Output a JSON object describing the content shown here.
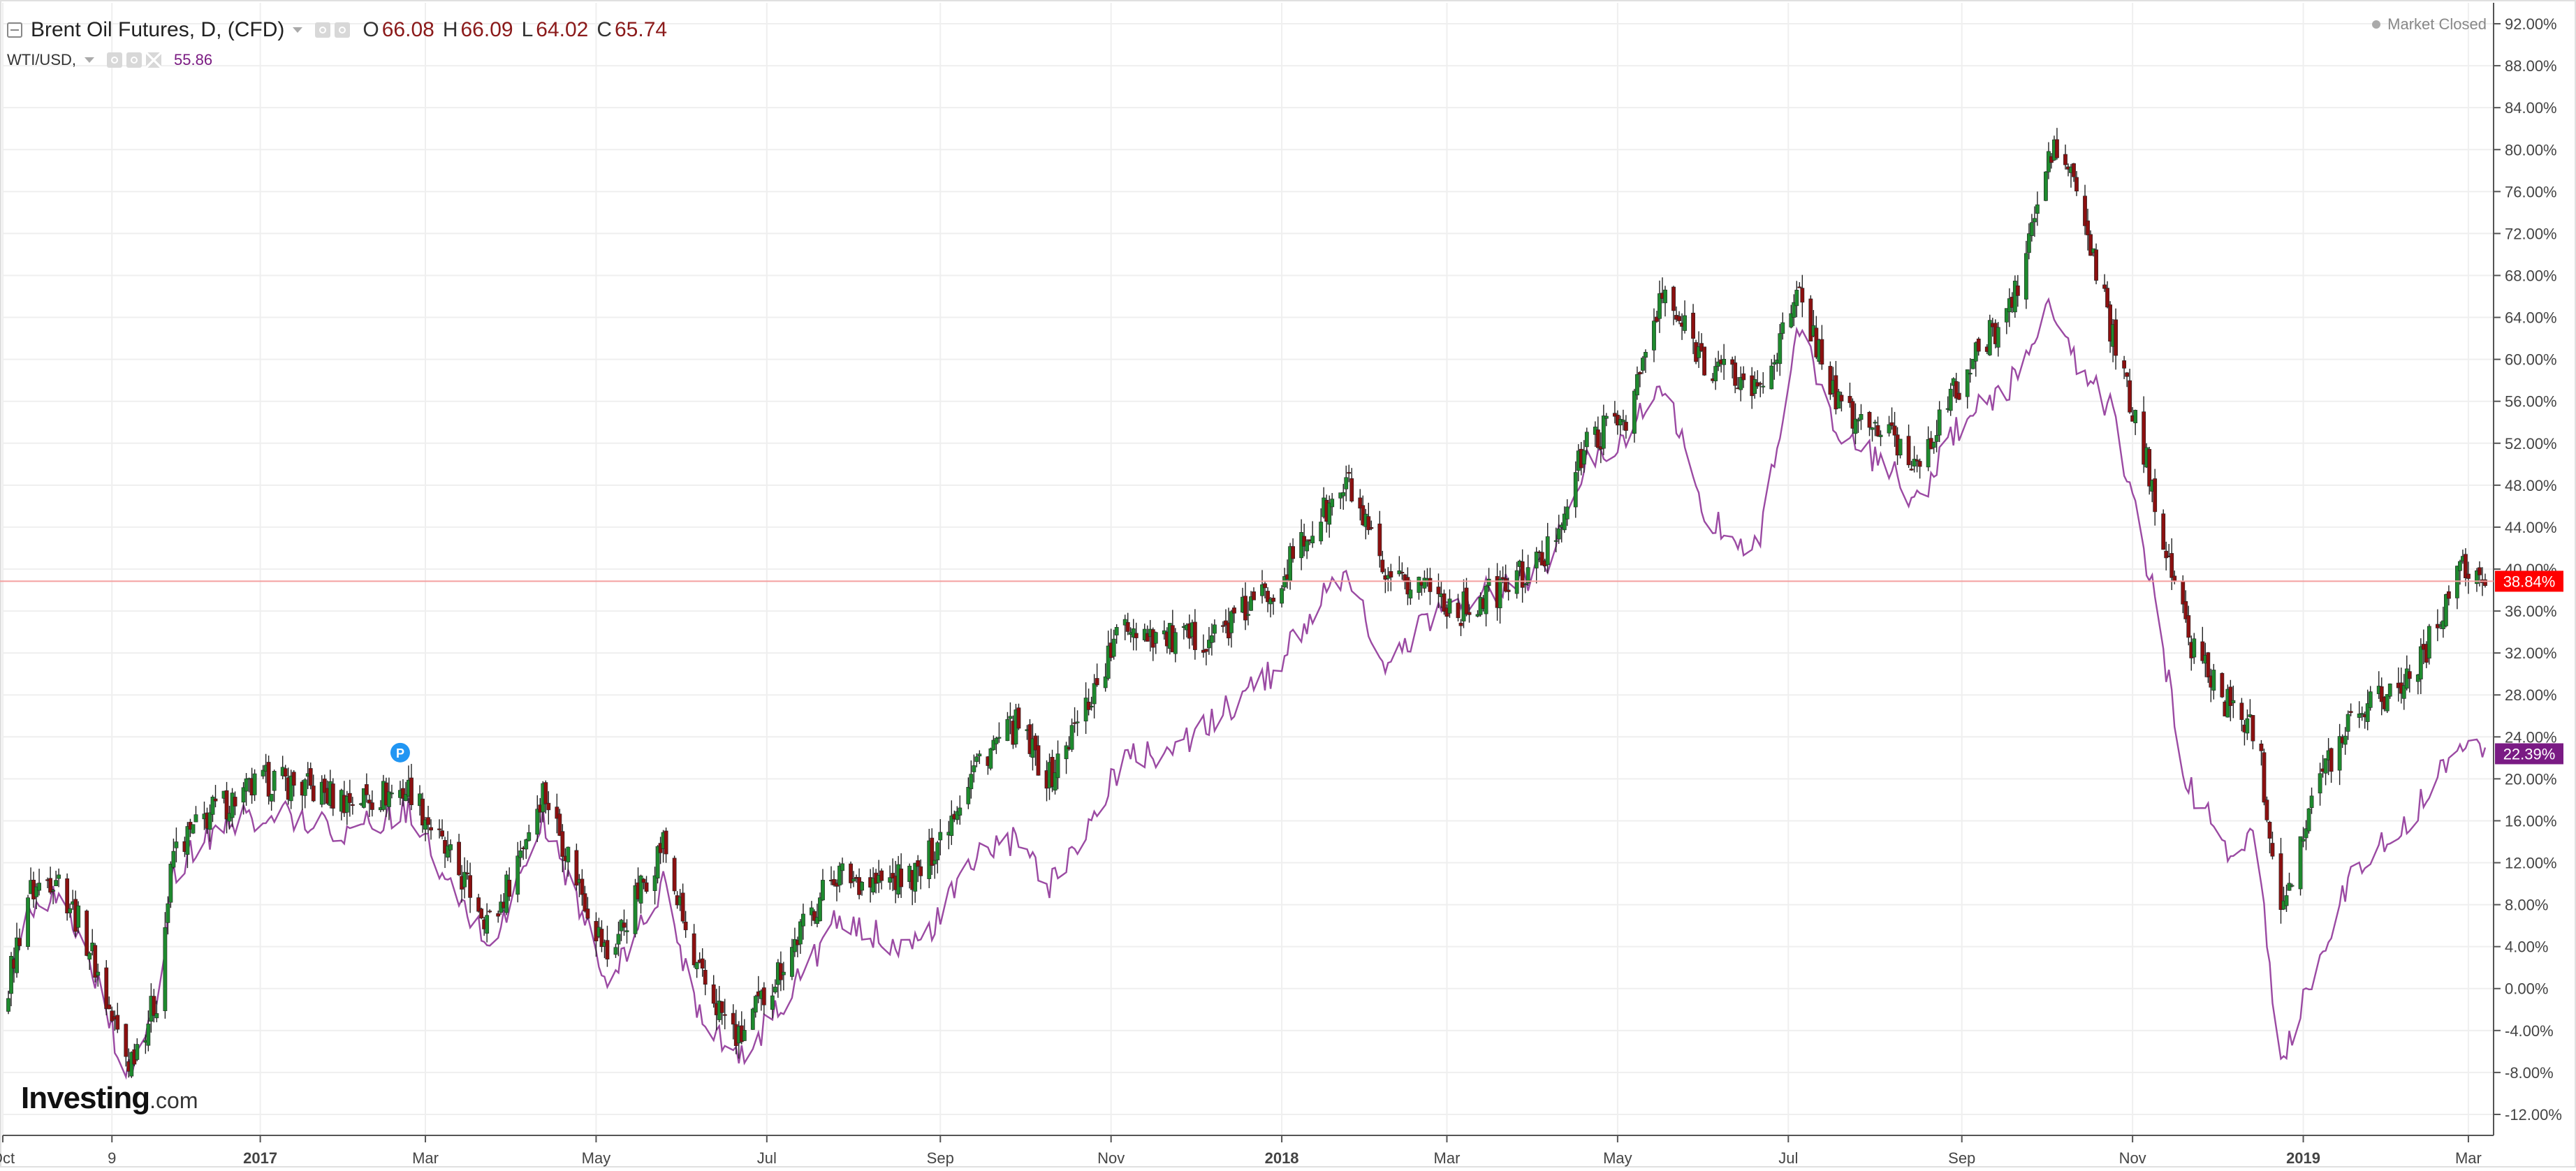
{
  "header": {
    "symbol_title": "Brent Oil Futures, D, (CFD)",
    "ohlc": [
      {
        "key": "O",
        "value": "66.08"
      },
      {
        "key": "H",
        "value": "66.09"
      },
      {
        "key": "L",
        "value": "64.02"
      },
      {
        "key": "C",
        "value": "65.74"
      }
    ],
    "compare_symbol": "WTI/USD,",
    "compare_value": "55.86",
    "market_status": "Market Closed"
  },
  "logo": {
    "brand": "Investing",
    "suffix": ".com"
  },
  "colors": {
    "up": "#1e8a2e",
    "down": "#8b1010",
    "compare": "#9b4aa3",
    "badge_main": "#ff0000",
    "badge_compare": "#7a1b84",
    "price_line": "#f4a0a0",
    "marker": "#2196f3"
  },
  "icons": [
    "collapse-icon",
    "caret-down-icon",
    "visibility-icon",
    "settings-icon",
    "close-icon",
    "marker-p-icon"
  ],
  "chart_data": {
    "type": "candlestick",
    "ylabel": "",
    "ylim": [
      -14,
      94
    ],
    "y_ticks": [
      92,
      88,
      84,
      80,
      76,
      72,
      68,
      64,
      60,
      56,
      52,
      48,
      44,
      40,
      36,
      32,
      28,
      24,
      20,
      16,
      12,
      8,
      4,
      0,
      -4,
      -8,
      -12
    ],
    "y_tick_labels": [
      "92.00%",
      "88.00%",
      "84.00%",
      "80.00%",
      "76.00%",
      "72.00%",
      "68.00%",
      "64.00%",
      "60.00%",
      "56.00%",
      "52.00%",
      "48.00%",
      "44.00%",
      "40.00%",
      "36.00%",
      "32.00%",
      "28.00%",
      "24.00%",
      "20.00%",
      "16.00%",
      "12.00%",
      "8.00%",
      "4.00%",
      "0.00%",
      "-4.00%",
      "-8.00%",
      "-12.00%"
    ],
    "x_range": [
      "2016-10-01",
      "2019-03-10"
    ],
    "x_ticks": [
      {
        "date": "2016-10-01",
        "label": "Oct",
        "bold": false
      },
      {
        "date": "2016-11-09",
        "label": "9",
        "bold": false
      },
      {
        "date": "2017-01-01",
        "label": "2017",
        "bold": true
      },
      {
        "date": "2017-03-01",
        "label": "Mar",
        "bold": false
      },
      {
        "date": "2017-05-01",
        "label": "May",
        "bold": false
      },
      {
        "date": "2017-07-01",
        "label": "Jul",
        "bold": false
      },
      {
        "date": "2017-09-01",
        "label": "Sep",
        "bold": false
      },
      {
        "date": "2017-11-01",
        "label": "Nov",
        "bold": false
      },
      {
        "date": "2018-01-01",
        "label": "2018",
        "bold": true
      },
      {
        "date": "2018-03-01",
        "label": "Mar",
        "bold": false
      },
      {
        "date": "2018-05-01",
        "label": "May",
        "bold": false
      },
      {
        "date": "2018-07-01",
        "label": "Jul",
        "bold": false
      },
      {
        "date": "2018-09-01",
        "label": "Sep",
        "bold": false
      },
      {
        "date": "2018-11-01",
        "label": "Nov",
        "bold": false
      },
      {
        "date": "2019-01-01",
        "label": "2019",
        "bold": true
      },
      {
        "date": "2019-03-01",
        "label": "Mar",
        "bold": false
      }
    ],
    "series": [
      {
        "name": "Brent Oil Futures",
        "style": "candlestick",
        "points": [
          [
            "2016-10-01",
            -2
          ],
          [
            "2016-10-10",
            9
          ],
          [
            "2016-10-20",
            11
          ],
          [
            "2016-11-01",
            4
          ],
          [
            "2016-11-09",
            -3
          ],
          [
            "2016-11-15",
            -7
          ],
          [
            "2016-11-25",
            -1
          ],
          [
            "2016-12-01",
            13
          ],
          [
            "2016-12-15",
            17
          ],
          [
            "2017-01-05",
            20
          ],
          [
            "2017-02-01",
            18
          ],
          [
            "2017-02-24",
            19
          ],
          [
            "2017-03-08",
            13
          ],
          [
            "2017-03-25",
            6
          ],
          [
            "2017-04-12",
            19
          ],
          [
            "2017-04-25",
            10
          ],
          [
            "2017-05-05",
            3
          ],
          [
            "2017-05-25",
            14
          ],
          [
            "2017-06-05",
            2
          ],
          [
            "2017-06-21",
            -5
          ],
          [
            "2017-07-10",
            4
          ],
          [
            "2017-07-25",
            11
          ],
          [
            "2017-08-10",
            10
          ],
          [
            "2017-08-25",
            11
          ],
          [
            "2017-09-15",
            22
          ],
          [
            "2017-09-28",
            25
          ],
          [
            "2017-10-10",
            20
          ],
          [
            "2017-10-25",
            28
          ],
          [
            "2017-11-06",
            35
          ],
          [
            "2017-11-25",
            33
          ],
          [
            "2017-12-10",
            34
          ],
          [
            "2017-12-28",
            38
          ],
          [
            "2018-01-15",
            45
          ],
          [
            "2018-01-25",
            48
          ],
          [
            "2018-02-08",
            38
          ],
          [
            "2018-02-20",
            39
          ],
          [
            "2018-03-05",
            36
          ],
          [
            "2018-03-20",
            38
          ],
          [
            "2018-04-05",
            41
          ],
          [
            "2018-04-20",
            52
          ],
          [
            "2018-05-05",
            55
          ],
          [
            "2018-05-17",
            66
          ],
          [
            "2018-06-01",
            60
          ],
          [
            "2018-06-20",
            57
          ],
          [
            "2018-07-05",
            66
          ],
          [
            "2018-07-20",
            55
          ],
          [
            "2018-08-05",
            53
          ],
          [
            "2018-08-15",
            50
          ],
          [
            "2018-09-01",
            58
          ],
          [
            "2018-09-20",
            66
          ],
          [
            "2018-10-03",
            80
          ],
          [
            "2018-10-10",
            78
          ],
          [
            "2018-10-25",
            62
          ],
          [
            "2018-11-08",
            48
          ],
          [
            "2018-11-20",
            34
          ],
          [
            "2018-12-05",
            27
          ],
          [
            "2018-12-15",
            25
          ],
          [
            "2018-12-24",
            8
          ],
          [
            "2019-01-07",
            20
          ],
          [
            "2019-01-20",
            27
          ],
          [
            "2019-02-05",
            29
          ],
          [
            "2019-02-15",
            33
          ],
          [
            "2019-02-25",
            40
          ],
          [
            "2019-03-07",
            38.84
          ]
        ]
      },
      {
        "name": "WTI/USD",
        "style": "line",
        "points": [
          [
            "2016-10-01",
            -2
          ],
          [
            "2016-10-10",
            8
          ],
          [
            "2016-10-20",
            9
          ],
          [
            "2016-11-01",
            3
          ],
          [
            "2016-11-09",
            -4
          ],
          [
            "2016-11-15",
            -8
          ],
          [
            "2016-11-25",
            -2
          ],
          [
            "2016-12-01",
            11
          ],
          [
            "2016-12-15",
            15
          ],
          [
            "2017-01-05",
            17
          ],
          [
            "2017-02-01",
            15
          ],
          [
            "2017-02-24",
            17
          ],
          [
            "2017-03-08",
            10
          ],
          [
            "2017-03-25",
            4
          ],
          [
            "2017-04-12",
            16
          ],
          [
            "2017-04-25",
            8
          ],
          [
            "2017-05-05",
            0
          ],
          [
            "2017-05-25",
            10
          ],
          [
            "2017-06-05",
            -1
          ],
          [
            "2017-06-21",
            -7
          ],
          [
            "2017-07-10",
            0
          ],
          [
            "2017-07-25",
            6
          ],
          [
            "2017-08-10",
            5
          ],
          [
            "2017-08-25",
            4
          ],
          [
            "2017-09-15",
            13
          ],
          [
            "2017-09-28",
            14
          ],
          [
            "2017-10-10",
            10
          ],
          [
            "2017-10-25",
            16
          ],
          [
            "2017-11-06",
            22
          ],
          [
            "2017-11-25",
            23
          ],
          [
            "2017-12-10",
            26
          ],
          [
            "2017-12-28",
            30
          ],
          [
            "2018-01-15",
            37
          ],
          [
            "2018-01-25",
            39
          ],
          [
            "2018-02-08",
            30
          ],
          [
            "2018-02-20",
            35
          ],
          [
            "2018-03-05",
            37
          ],
          [
            "2018-03-20",
            38
          ],
          [
            "2018-04-05",
            40
          ],
          [
            "2018-04-20",
            50
          ],
          [
            "2018-05-05",
            53
          ],
          [
            "2018-05-17",
            58
          ],
          [
            "2018-06-01",
            45
          ],
          [
            "2018-06-20",
            42
          ],
          [
            "2018-07-05",
            63
          ],
          [
            "2018-07-20",
            52
          ],
          [
            "2018-08-05",
            50
          ],
          [
            "2018-08-15",
            46
          ],
          [
            "2018-09-01",
            54
          ],
          [
            "2018-09-20",
            58
          ],
          [
            "2018-10-03",
            66
          ],
          [
            "2018-10-10",
            60
          ],
          [
            "2018-10-25",
            55
          ],
          [
            "2018-11-08",
            38
          ],
          [
            "2018-11-20",
            20
          ],
          [
            "2018-12-05",
            13
          ],
          [
            "2018-12-15",
            14
          ],
          [
            "2018-12-24",
            -7
          ],
          [
            "2019-01-07",
            3
          ],
          [
            "2019-01-20",
            12
          ],
          [
            "2019-02-05",
            15
          ],
          [
            "2019-02-15",
            19
          ],
          [
            "2019-02-25",
            24
          ],
          [
            "2019-03-07",
            22.39
          ]
        ]
      }
    ],
    "current_price_line": 38.84,
    "badges": [
      {
        "series": "Brent Oil Futures",
        "value": 38.84,
        "label": "38.84%"
      },
      {
        "series": "WTI/USD",
        "value": 22.39,
        "label": "22.39%"
      }
    ],
    "markers": [
      {
        "date": "2017-02-20",
        "value": 22.5,
        "label": "P"
      }
    ],
    "grid": true
  }
}
